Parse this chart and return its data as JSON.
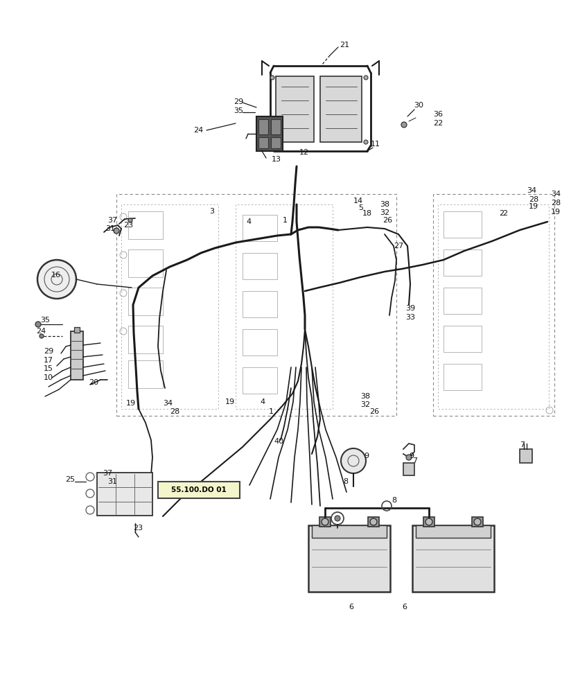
{
  "bg_color": "#ffffff",
  "line_color": "#1a1a1a",
  "fig_width": 8.12,
  "fig_height": 10.0,
  "dpi": 100
}
